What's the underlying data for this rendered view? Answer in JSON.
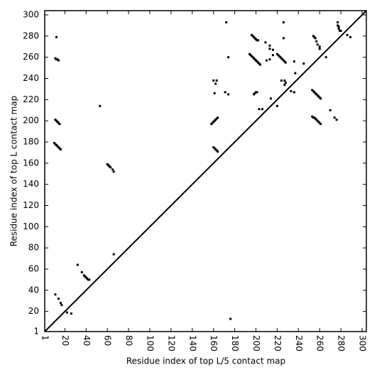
{
  "chart_data": {
    "type": "scatter",
    "xlabel": "Residue index of top L/5 contact map",
    "ylabel": "Residue index of top L contact map",
    "color": "#000000",
    "xlim": [
      1,
      304
    ],
    "ylim": [
      1,
      304
    ],
    "xticks": [
      1,
      20,
      40,
      60,
      80,
      100,
      120,
      140,
      160,
      180,
      200,
      220,
      240,
      260,
      280,
      300
    ],
    "yticks": [
      1,
      20,
      40,
      60,
      80,
      100,
      120,
      140,
      160,
      180,
      200,
      220,
      240,
      260,
      280,
      300
    ],
    "x": [
      12,
      11,
      12,
      13,
      14,
      11,
      12,
      13,
      14,
      15,
      10,
      11,
      12,
      13,
      14,
      15,
      16,
      60,
      61,
      62,
      63,
      65,
      66,
      53,
      66,
      172,
      174,
      158,
      159,
      160,
      161,
      162,
      163,
      164,
      160,
      163,
      162,
      161,
      171,
      174,
      160,
      161,
      162,
      163,
      164,
      11,
      14,
      16,
      17,
      22,
      26,
      32,
      36,
      38,
      39,
      40,
      41,
      42,
      43,
      176,
      196,
      197,
      198,
      199,
      200,
      201,
      202,
      194,
      195,
      196,
      197,
      198,
      199,
      200,
      201,
      202,
      203,
      204,
      209,
      213,
      213,
      216,
      216,
      213,
      210,
      220,
      221,
      222,
      223,
      224,
      225,
      226,
      227,
      228,
      226,
      226,
      224,
      227,
      227,
      228,
      233,
      236,
      236,
      245,
      237,
      198,
      199,
      200,
      201,
      203,
      206,
      214,
      220,
      254,
      255,
      256,
      257,
      258,
      260,
      260,
      266,
      253,
      254,
      255,
      256,
      257,
      258,
      259,
      260,
      261,
      253,
      254,
      255,
      256,
      257,
      258,
      259,
      260,
      261,
      270,
      274,
      276,
      277,
      277,
      278,
      278,
      279,
      280,
      286,
      289
    ],
    "y": [
      279,
      259,
      258,
      258,
      257,
      201,
      200,
      199,
      198,
      197,
      179,
      178,
      177,
      176,
      175,
      174,
      173,
      159,
      158,
      157,
      156,
      154,
      152,
      214,
      74,
      293,
      260,
      197,
      198,
      199,
      200,
      201,
      202,
      203,
      238,
      238,
      235,
      226,
      227,
      225,
      175,
      174,
      173,
      172,
      171,
      36,
      32,
      28,
      26,
      19,
      18,
      64,
      57,
      54,
      53,
      52,
      51,
      50,
      50,
      13,
      281,
      280,
      279,
      278,
      277,
      276,
      276,
      263,
      262,
      261,
      260,
      259,
      258,
      257,
      256,
      255,
      254,
      253,
      274,
      271,
      268,
      267,
      262,
      258,
      257,
      263,
      262,
      261,
      260,
      259,
      258,
      257,
      256,
      255,
      278,
      293,
      238,
      238,
      234,
      236,
      228,
      227,
      256,
      254,
      245,
      225,
      226,
      227,
      227,
      211,
      211,
      221,
      214,
      280,
      279,
      278,
      275,
      272,
      270,
      268,
      260,
      229,
      228,
      227,
      226,
      225,
      224,
      223,
      222,
      221,
      204,
      203,
      203,
      202,
      201,
      200,
      199,
      198,
      197,
      210,
      203,
      201,
      293,
      290,
      289,
      287,
      285,
      285,
      281,
      279
    ]
  }
}
